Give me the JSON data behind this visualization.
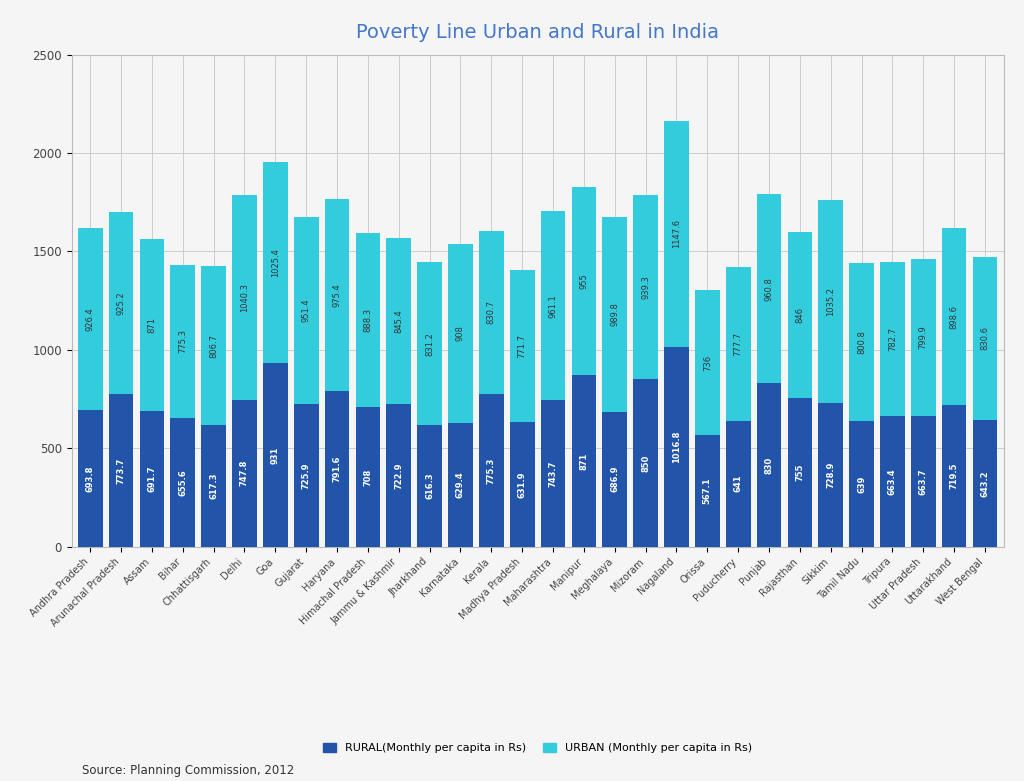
{
  "title": "Poverty Line Urban and Rural in India",
  "source": "Source: Planning Commission, 2012",
  "states": [
    "Andhra Pradesh",
    "Arunachal Pradesh",
    "Assam",
    "Bihar",
    "Chhattisgarh",
    "Delhi",
    "Goa",
    "Gujarat",
    "Haryana",
    "Himachal Pradesh",
    "Jammu & Kashmir",
    "Jharkhand",
    "Karnataka",
    "Kerala",
    "Madhya Pradesh",
    "Maharashtra",
    "Manipur",
    "Meghalaya",
    "Mizoram",
    "Nagaland",
    "Orissa",
    "Puducherry",
    "Punjab",
    "Rajasthan",
    "Sikkim",
    "Tamil Nadu",
    "Tripura",
    "Uttar Pradesh",
    "Uttarakhand",
    "West Bengal"
  ],
  "rural": [
    693.8,
    773.7,
    691.7,
    655.6,
    617.3,
    747.8,
    931,
    725.9,
    791.6,
    708,
    722.9,
    616.3,
    629.4,
    775.3,
    631.9,
    743.7,
    871,
    686.9,
    850,
    1016.8,
    567.1,
    641,
    830,
    755,
    728.9,
    639,
    663.4,
    663.7,
    719.5,
    643.2
  ],
  "urban": [
    926.4,
    925.2,
    871,
    775.3,
    806.7,
    1040.3,
    1025.4,
    951.4,
    975.4,
    888.3,
    845.4,
    831.2,
    908,
    830.7,
    771.7,
    961.1,
    955,
    989.8,
    939.3,
    1147.6,
    736,
    777.7,
    960.8,
    846,
    1035.2,
    800.8,
    782.7,
    799.9,
    898.6,
    830.6
  ],
  "rural_color": "#2255aa",
  "urban_color": "#33ccdd",
  "background_color": "#f5f5f5",
  "plot_bg_color": "#f5f5f5",
  "title_color": "#4477cc",
  "grid_color": "#cccccc",
  "ylim": [
    0,
    2500
  ],
  "yticks": [
    0,
    500,
    1000,
    1500,
    2000,
    2500
  ],
  "bar_width": 0.8,
  "title_fontsize": 14,
  "tick_fontsize": 7,
  "value_fontsize": 6,
  "legend_fontsize": 8,
  "source_fontsize": 8.5
}
